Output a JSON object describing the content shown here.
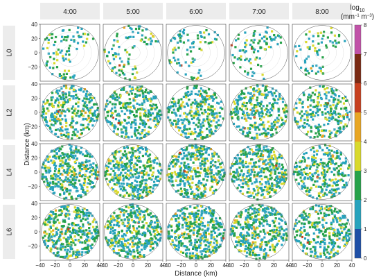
{
  "chart_data": {
    "type": "heatmap",
    "subtype": "faceted radar PPI grid",
    "columns": [
      "4:00",
      "5:00",
      "6:00",
      "7:00",
      "8:00"
    ],
    "rows": [
      "L0",
      "L2",
      "L4",
      "L6"
    ],
    "xlabel": "Distance (km)",
    "ylabel": "Distance (km)",
    "xlim": [
      -40,
      40
    ],
    "ylim": [
      -40,
      40
    ],
    "x_ticks": [
      -40,
      -20,
      0,
      20,
      40
    ],
    "y_ticks": [
      -20,
      0,
      20,
      40
    ],
    "x_tick_labels": [
      "−40",
      "−20",
      "0",
      "20",
      "40"
    ],
    "y_tick_labels": [
      "−20",
      "0",
      "20",
      "40"
    ],
    "colorbar": {
      "label_base": "log",
      "label_sub": "10",
      "unit_parts": [
        "(mm",
        "−1",
        " m",
        "−3",
        ")"
      ],
      "range": [
        0,
        8
      ],
      "ticks": [
        0,
        1,
        2,
        3,
        4,
        5,
        6,
        7,
        8
      ],
      "colors": [
        "#1e4fa6",
        "#27a3bd",
        "#27a24a",
        "#d9d92c",
        "#e8a623",
        "#c7401f",
        "#7a2a14",
        "#c152a8"
      ]
    },
    "grid": true,
    "legend_position": "right"
  }
}
